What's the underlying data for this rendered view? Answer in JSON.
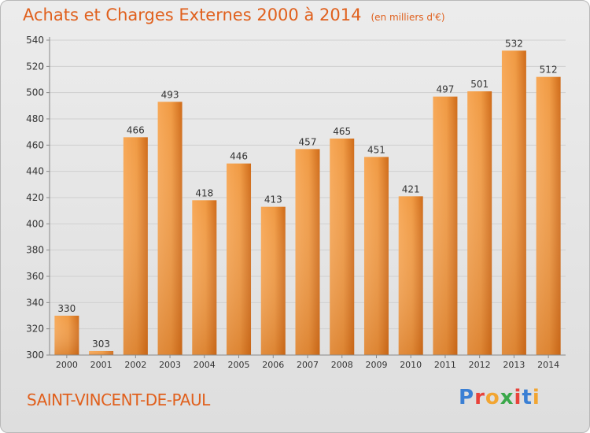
{
  "title": "Achats et Charges Externes 2000 à 2014",
  "unit": "(en milliers d'€)",
  "location": "SAINT-VINCENT-DE-PAUL",
  "brand": {
    "name": "Proxiti",
    "letter_colors": [
      "#3a7fd4",
      "#e8423a",
      "#f2a531",
      "#3aa84a",
      "#e8423a",
      "#3a7fd4",
      "#f2a531"
    ]
  },
  "colors": {
    "bar_light": "#f7a857",
    "bar_dark": "#cf6b19",
    "accent": "#e0601d"
  },
  "chart_data": {
    "type": "bar",
    "title": "Achats et Charges Externes 2000 à 2014",
    "xlabel": "",
    "ylabel": "",
    "categories": [
      "2000",
      "2001",
      "2002",
      "2003",
      "2004",
      "2005",
      "2006",
      "2007",
      "2008",
      "2009",
      "2010",
      "2011",
      "2012",
      "2013",
      "2014"
    ],
    "values": [
      330,
      303,
      466,
      493,
      418,
      446,
      413,
      457,
      465,
      451,
      421,
      497,
      501,
      532,
      512
    ],
    "ylim": [
      300,
      540
    ],
    "yticks": [
      300,
      320,
      340,
      360,
      380,
      400,
      420,
      440,
      460,
      480,
      500,
      520,
      540
    ],
    "grid": true,
    "data_labels": true
  }
}
